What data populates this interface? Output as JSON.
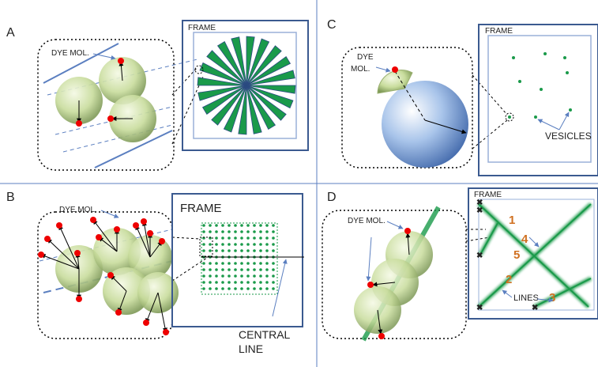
{
  "panels": [
    {
      "label": "A",
      "frame": "FRAME",
      "dye": "DYE MOL."
    },
    {
      "label": "B",
      "frame": "FRAME",
      "dye": "DYE MOL.",
      "central": [
        "CENTRAL",
        "LINE"
      ]
    },
    {
      "label": "C",
      "frame": "FRAME",
      "dye": [
        "DYE",
        "MOL."
      ],
      "vesicles": "VESICLES"
    },
    {
      "label": "D",
      "frame": "FRAME",
      "dye": "DYE MOL.",
      "lines": "LINES",
      "numbers": [
        "1",
        "2",
        "3",
        "4",
        "5"
      ]
    }
  ]
}
